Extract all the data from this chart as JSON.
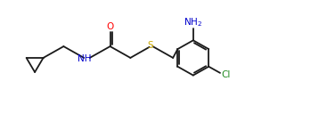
{
  "figsize": [
    3.67,
    1.37
  ],
  "dpi": 100,
  "bg_color": "#ffffff",
  "line_color": "#1a1a1a",
  "atom_colors": {
    "O": "#ff0000",
    "N": "#0000cc",
    "S": "#ccaa00",
    "Cl": "#228b22",
    "NH2": "#0000cc"
  },
  "line_width": 1.3,
  "xlim": [
    0,
    10
  ],
  "ylim": [
    0,
    3.8
  ]
}
